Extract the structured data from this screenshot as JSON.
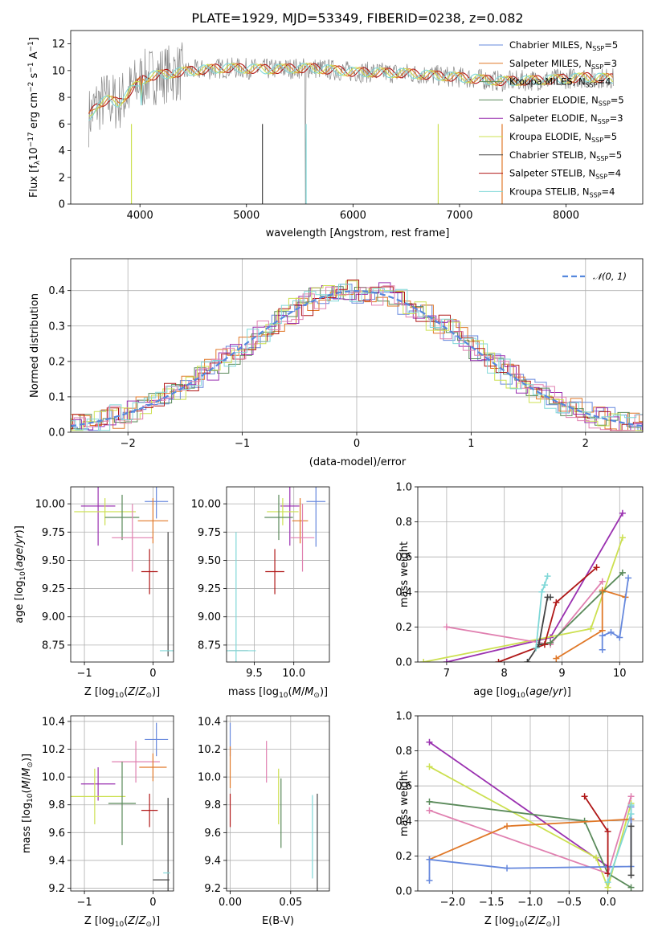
{
  "colors": {
    "Chabrier MILES": "#6688dd",
    "Salpeter MILES": "#e07828",
    "Kroupa MILES": "#5a8a5a",
    "Chabrier ELODIE": "#5a8a5a",
    "Salpeter ELODIE": "#9a30b0",
    "Kroupa ELODIE": "#cce050",
    "Chabrier STELIB": "#444444",
    "Salpeter STELIB": "#b01818",
    "Kroupa STELIB": "#80d8d8",
    "pink": "#e080b0",
    "data": "#888888",
    "gauss": "#5588dd"
  },
  "chart_data": [
    {
      "id": "spectrum",
      "type": "line",
      "title": "PLATE=1929, MJD=53349, FIBERID=0238, z=0.082",
      "xlabel": "wavelength [Angstrom, rest frame]",
      "ylabel": "Flux [f_λ 10^-17 erg cm^-2 s^-1 A^-1]",
      "xlim": [
        3350,
        8720
      ],
      "ylim": [
        0,
        13
      ],
      "xticks": [
        4000,
        5000,
        6000,
        7000,
        8000
      ],
      "yticks": [
        0,
        2,
        4,
        6,
        8,
        10,
        12
      ],
      "xtick_labels": [
        "4000",
        "5000",
        "6000",
        "7000",
        "8000"
      ],
      "ytick_labels": [
        "0",
        "2",
        "4",
        "6",
        "8",
        "10",
        "12"
      ],
      "continuum": [
        [
          3520,
          6.5
        ],
        [
          3600,
          7.5
        ],
        [
          3700,
          7.8
        ],
        [
          3800,
          7.6
        ],
        [
          3900,
          8.4
        ],
        [
          4000,
          9.2
        ],
        [
          4100,
          9.6
        ],
        [
          4300,
          9.8
        ],
        [
          4500,
          10.0
        ],
        [
          4800,
          10.2
        ],
        [
          5200,
          10.1
        ],
        [
          5600,
          10.2
        ],
        [
          6000,
          9.9
        ],
        [
          6500,
          9.8
        ],
        [
          7000,
          9.5
        ],
        [
          7400,
          9.2
        ],
        [
          7800,
          9.3
        ],
        [
          8200,
          9.5
        ],
        [
          8450,
          9.4
        ]
      ],
      "legend": [
        {
          "label": "Chabrier MILES, N",
          "sub": "SSP",
          "eq": "=5"
        },
        {
          "label": "Salpeter MILES, N",
          "sub": "SSP",
          "eq": "=3"
        },
        {
          "label": "Kroupa MILES, N",
          "sub": "SSP",
          "eq": "=4"
        },
        {
          "label": "Chabrier ELODIE, N",
          "sub": "SSP",
          "eq": "=5"
        },
        {
          "label": "Salpeter ELODIE, N",
          "sub": "SSP",
          "eq": "=3"
        },
        {
          "label": "Kroupa ELODIE, N",
          "sub": "SSP",
          "eq": "=5"
        },
        {
          "label": "Chabrier STELIB, N",
          "sub": "SSP",
          "eq": "=5"
        },
        {
          "label": "Salpeter STELIB, N",
          "sub": "SSP",
          "eq": "=4"
        },
        {
          "label": "Kroupa STELIB, N",
          "sub": "SSP",
          "eq": "=4"
        }
      ]
    },
    {
      "id": "residuals",
      "type": "line",
      "xlabel": "(data-model)/error",
      "ylabel": "Normed distribution",
      "xlim": [
        -2.5,
        2.5
      ],
      "ylim": [
        0,
        0.49
      ],
      "xticks": [
        -2,
        -1,
        0,
        1,
        2
      ],
      "yticks": [
        0.0,
        0.1,
        0.2,
        0.3,
        0.4
      ],
      "xtick_labels": [
        "−2",
        "−1",
        "0",
        "1",
        "2"
      ],
      "ytick_labels": [
        "0.0",
        "0.1",
        "0.2",
        "0.3",
        "0.4"
      ],
      "legend": [
        {
          "label": "𝒩(0, 1)"
        }
      ]
    },
    {
      "id": "age_vs_Z",
      "type": "scatter",
      "xlabel": "Z [log10(Z/Z⊙)]",
      "ylabel": "age  [log10(age/yr)]",
      "xlim": [
        -1.2,
        0.3
      ],
      "ylim": [
        8.6,
        10.15
      ],
      "xticks": [
        -1,
        0
      ],
      "yticks": [
        8.75,
        9.0,
        9.25,
        9.5,
        9.75,
        10.0
      ],
      "xtick_labels": [
        "−1",
        "0"
      ],
      "ytick_labels": [
        "8.75",
        "9.00",
        "9.25",
        "9.50",
        "9.75",
        "10.00"
      ],
      "points": [
        {
          "x": -0.8,
          "y": 9.98,
          "xerr": 0.25,
          "yerr": 0.35,
          "c": "Salpeter ELODIE"
        },
        {
          "x": -0.7,
          "y": 9.93,
          "xerr": 0.45,
          "yerr": 0.12,
          "c": "Kroupa ELODIE"
        },
        {
          "x": -0.45,
          "y": 9.88,
          "xerr": 0.25,
          "yerr": 0.2,
          "c": "Chabrier ELODIE"
        },
        {
          "x": -0.3,
          "y": 9.7,
          "xerr": 0.3,
          "yerr": 0.3,
          "c": "pink"
        },
        {
          "x": 0.05,
          "y": 10.02,
          "xerr": 0.17,
          "yerr": 0.15,
          "c": "Chabrier MILES"
        },
        {
          "x": 0.0,
          "y": 9.85,
          "xerr": 0.22,
          "yerr": 0.2,
          "c": "Salpeter MILES"
        },
        {
          "x": -0.05,
          "y": 9.4,
          "xerr": 0.12,
          "yerr": 0.2,
          "c": "Salpeter STELIB"
        },
        {
          "x": 0.22,
          "y": 9.2,
          "xerr": 0.0,
          "yerr": 0.55,
          "c": "Chabrier STELIB"
        },
        {
          "x": 0.2,
          "y": 8.7,
          "xerr": 0.1,
          "yerr": 0.0,
          "c": "Kroupa STELIB"
        }
      ]
    },
    {
      "id": "age_vs_mass",
      "type": "scatter",
      "xlabel": "mass [log10(M/M⊙)]",
      "ylabel": "",
      "xlim": [
        9.15,
        10.45
      ],
      "ylim": [
        8.6,
        10.15
      ],
      "xticks": [
        9.5,
        10.0
      ],
      "yticks": [
        8.75,
        9.0,
        9.25,
        9.5,
        9.75,
        10.0
      ],
      "xtick_labels": [
        "9.5",
        "10.0"
      ],
      "ytick_labels": [
        "8.75",
        "9.00",
        "9.25",
        "9.50",
        "9.75",
        "10.00"
      ],
      "points": [
        {
          "x": 10.28,
          "y": 10.02,
          "xerr": 0.12,
          "yerr": 0.4,
          "c": "Chabrier MILES"
        },
        {
          "x": 9.95,
          "y": 9.98,
          "xerr": 0.12,
          "yerr": 0.35,
          "c": "Salpeter ELODIE"
        },
        {
          "x": 9.86,
          "y": 9.93,
          "xerr": 0.2,
          "yerr": 0.12,
          "c": "Kroupa ELODIE"
        },
        {
          "x": 9.81,
          "y": 9.88,
          "xerr": 0.18,
          "yerr": 0.2,
          "c": "Chabrier ELODIE"
        },
        {
          "x": 10.08,
          "y": 9.85,
          "xerr": 0.1,
          "yerr": 0.2,
          "c": "Salpeter MILES"
        },
        {
          "x": 10.11,
          "y": 9.7,
          "xerr": 0.15,
          "yerr": 0.3,
          "c": "pink"
        },
        {
          "x": 9.76,
          "y": 9.4,
          "xerr": 0.12,
          "yerr": 0.2,
          "c": "Salpeter STELIB"
        },
        {
          "x": 9.3,
          "y": 8.7,
          "xerr": 0.12,
          "yerr": 0.0,
          "c": "Chabrier STELIB"
        },
        {
          "x": 9.27,
          "y": 8.7,
          "xerr": 0.25,
          "yerr": 1.05,
          "c": "Kroupa STELIB"
        }
      ]
    },
    {
      "id": "massweight_vs_age",
      "type": "line",
      "xlabel": "age  [log10(age/yr)]",
      "ylabel": "mass weight",
      "xlim": [
        6.5,
        10.4
      ],
      "ylim": [
        0,
        1.0
      ],
      "xticks": [
        7,
        8,
        9,
        10
      ],
      "yticks": [
        0.0,
        0.2,
        0.4,
        0.6,
        0.8,
        1.0
      ],
      "xtick_labels": [
        "7",
        "8",
        "9",
        "10"
      ],
      "ytick_labels": [
        "0.0",
        "0.2",
        "0.4",
        "0.6",
        "0.8",
        "1.0"
      ],
      "series": [
        {
          "c": "Salpeter ELODIE",
          "pts": [
            [
              7.0,
              0.0
            ],
            [
              8.8,
              0.14
            ],
            [
              10.05,
              0.85
            ]
          ]
        },
        {
          "c": "Kroupa ELODIE",
          "pts": [
            [
              6.6,
              0.0
            ],
            [
              9.5,
              0.19
            ],
            [
              10.05,
              0.71
            ]
          ]
        },
        {
          "c": "pink",
          "pts": [
            [
              7.0,
              0.2
            ],
            [
              8.8,
              0.1
            ],
            [
              9.7,
              0.46
            ]
          ]
        },
        {
          "c": "Chabrier ELODIE",
          "pts": [
            [
              8.6,
              0.1
            ],
            [
              8.8,
              0.11
            ],
            [
              9.7,
              0.4
            ],
            [
              10.05,
              0.51
            ]
          ]
        },
        {
          "c": "Salpeter MILES",
          "pts": [
            [
              8.9,
              0.02
            ],
            [
              9.7,
              0.18
            ],
            [
              9.7,
              0.41
            ],
            [
              10.1,
              0.37
            ]
          ]
        },
        {
          "c": "Chabrier MILES",
          "pts": [
            [
              9.7,
              0.07
            ],
            [
              9.7,
              0.15
            ],
            [
              9.85,
              0.17
            ],
            [
              10.0,
              0.14
            ],
            [
              10.15,
              0.48
            ]
          ]
        },
        {
          "c": "Salpeter STELIB",
          "pts": [
            [
              7.9,
              0.0
            ],
            [
              8.7,
              0.1
            ],
            [
              8.9,
              0.34
            ],
            [
              9.6,
              0.54
            ]
          ]
        },
        {
          "c": "Chabrier STELIB",
          "pts": [
            [
              8.4,
              0.0
            ],
            [
              8.6,
              0.1
            ],
            [
              8.75,
              0.37
            ],
            [
              8.8,
              0.37
            ]
          ]
        },
        {
          "c": "Kroupa STELIB",
          "pts": [
            [
              8.55,
              0.08
            ],
            [
              8.65,
              0.4
            ],
            [
              8.7,
              0.44
            ],
            [
              8.75,
              0.49
            ]
          ]
        }
      ]
    },
    {
      "id": "mass_vs_Z",
      "type": "scatter",
      "xlabel": "Z [log10(Z/Z⊙)]",
      "ylabel": "mass [log10(M/M⊙)]",
      "xlim": [
        -1.2,
        0.3
      ],
      "ylim": [
        9.18,
        10.44
      ],
      "xticks": [
        -1,
        0
      ],
      "yticks": [
        9.2,
        9.4,
        9.6,
        9.8,
        10.0,
        10.2,
        10.4
      ],
      "xtick_labels": [
        "−1",
        "0"
      ],
      "ytick_labels": [
        "9.2",
        "9.4",
        "9.6",
        "9.8",
        "10.0",
        "10.2",
        "10.4"
      ],
      "points": [
        {
          "x": 0.05,
          "y": 10.27,
          "xerr": 0.17,
          "yerr": 0.12,
          "c": "Chabrier MILES"
        },
        {
          "x": -0.25,
          "y": 10.11,
          "xerr": 0.35,
          "yerr": 0.15,
          "c": "pink"
        },
        {
          "x": 0.0,
          "y": 10.07,
          "xerr": 0.2,
          "yerr": 0.1,
          "c": "Salpeter MILES"
        },
        {
          "x": -0.8,
          "y": 9.95,
          "xerr": 0.25,
          "yerr": 0.12,
          "c": "Salpeter ELODIE"
        },
        {
          "x": -0.85,
          "y": 9.86,
          "xerr": 0.45,
          "yerr": 0.2,
          "c": "Kroupa ELODIE"
        },
        {
          "x": -0.45,
          "y": 9.81,
          "xerr": 0.2,
          "yerr": 0.3,
          "c": "Chabrier ELODIE"
        },
        {
          "x": -0.05,
          "y": 9.76,
          "xerr": 0.12,
          "yerr": 0.12,
          "c": "Salpeter STELIB"
        },
        {
          "x": 0.22,
          "y": 9.5,
          "xerr": 0.0,
          "yerr": 0.35,
          "c": "Chabrier STELIB"
        },
        {
          "x": 0.12,
          "y": 9.26,
          "xerr": 0.12,
          "yerr": 0.0,
          "c": "Chabrier STELIB"
        },
        {
          "x": 0.2,
          "y": 9.31,
          "xerr": 0.05,
          "yerr": 0.0,
          "c": "Kroupa STELIB"
        }
      ]
    },
    {
      "id": "mass_vs_EBV",
      "type": "scatter",
      "xlabel": "E(B-V)",
      "ylabel": "",
      "xlim": [
        -0.003,
        0.082
      ],
      "ylim": [
        9.18,
        10.44
      ],
      "xticks": [
        0.0,
        0.05
      ],
      "yticks": [
        9.2,
        9.4,
        9.6,
        9.8,
        10.0,
        10.2,
        10.4
      ],
      "xtick_labels": [
        "0.00",
        "0.05"
      ],
      "ytick_labels": [
        "9.2",
        "9.4",
        "9.6",
        "9.8",
        "10.0",
        "10.2",
        "10.4"
      ],
      "points": [
        {
          "x": 0.0,
          "y": 10.27,
          "xerr": 0,
          "yerr": 0.12,
          "c": "Chabrier MILES"
        },
        {
          "x": 0.0,
          "y": 10.07,
          "xerr": 0,
          "yerr": 0.15,
          "c": "Salpeter MILES"
        },
        {
          "x": 0.0,
          "y": 9.76,
          "xerr": 0,
          "yerr": 0.12,
          "c": "Salpeter STELIB"
        },
        {
          "x": 0.03,
          "y": 10.11,
          "xerr": 0,
          "yerr": 0.15,
          "c": "pink"
        },
        {
          "x": 0.04,
          "y": 9.86,
          "xerr": 0,
          "yerr": 0.2,
          "c": "Kroupa ELODIE"
        },
        {
          "x": 0.042,
          "y": 9.74,
          "xerr": 0,
          "yerr": 0.25,
          "c": "Chabrier ELODIE"
        },
        {
          "x": 0.068,
          "y": 9.57,
          "xerr": 0,
          "yerr": 0.3,
          "c": "Kroupa STELIB"
        },
        {
          "x": 0.072,
          "y": 9.53,
          "xerr": 0,
          "yerr": 0.35,
          "c": "Chabrier STELIB"
        }
      ]
    },
    {
      "id": "massweight_vs_Z",
      "type": "line",
      "xlabel": "Z [log10(Z/Z⊙)]",
      "ylabel": "mass weight",
      "xlim": [
        -2.45,
        0.45
      ],
      "ylim": [
        0,
        1.0
      ],
      "xticks": [
        -2.0,
        -1.5,
        -1.0,
        -0.5,
        0.0
      ],
      "yticks": [
        0.0,
        0.2,
        0.4,
        0.6,
        0.8,
        1.0
      ],
      "xtick_labels": [
        "−2.0",
        "−1.5",
        "−1.0",
        "−0.5",
        "0.0"
      ],
      "ytick_labels": [
        "0.0",
        "0.2",
        "0.4",
        "0.6",
        "0.8",
        "1.0"
      ],
      "series": [
        {
          "c": "Salpeter ELODIE",
          "pts": [
            [
              -2.3,
              0.85
            ],
            [
              0.0,
              0.14
            ]
          ]
        },
        {
          "c": "Kroupa ELODIE",
          "pts": [
            [
              -2.3,
              0.71
            ],
            [
              -0.15,
              0.19
            ],
            [
              0.0,
              0.02
            ],
            [
              0.3,
              0.5
            ]
          ]
        },
        {
          "c": "Chabrier ELODIE",
          "pts": [
            [
              -2.3,
              0.51
            ],
            [
              -0.3,
              0.4
            ],
            [
              0.0,
              0.1
            ],
            [
              0.3,
              0.02
            ]
          ]
        },
        {
          "c": "pink",
          "pts": [
            [
              -2.3,
              0.46
            ],
            [
              0.0,
              0.1
            ],
            [
              0.3,
              0.54
            ]
          ]
        },
        {
          "c": "Salpeter MILES",
          "pts": [
            [
              -2.3,
              0.18
            ],
            [
              -1.3,
              0.37
            ],
            [
              0.3,
              0.41
            ]
          ]
        },
        {
          "c": "Chabrier MILES",
          "pts": [
            [
              -2.3,
              0.06
            ],
            [
              -2.3,
              0.18
            ],
            [
              -1.3,
              0.13
            ],
            [
              0.3,
              0.14
            ],
            [
              0.3,
              0.48
            ]
          ]
        },
        {
          "c": "Salpeter STELIB",
          "pts": [
            [
              -0.3,
              0.54
            ],
            [
              0.0,
              0.34
            ],
            [
              0.0,
              0.1
            ]
          ]
        },
        {
          "c": "Chabrier STELIB",
          "pts": [
            [
              0.3,
              0.09
            ],
            [
              0.3,
              0.37
            ]
          ]
        },
        {
          "c": "Kroupa STELIB",
          "pts": [
            [
              0.0,
              0.05
            ],
            [
              0.3,
              0.44
            ],
            [
              0.3,
              0.49
            ]
          ]
        }
      ]
    }
  ]
}
